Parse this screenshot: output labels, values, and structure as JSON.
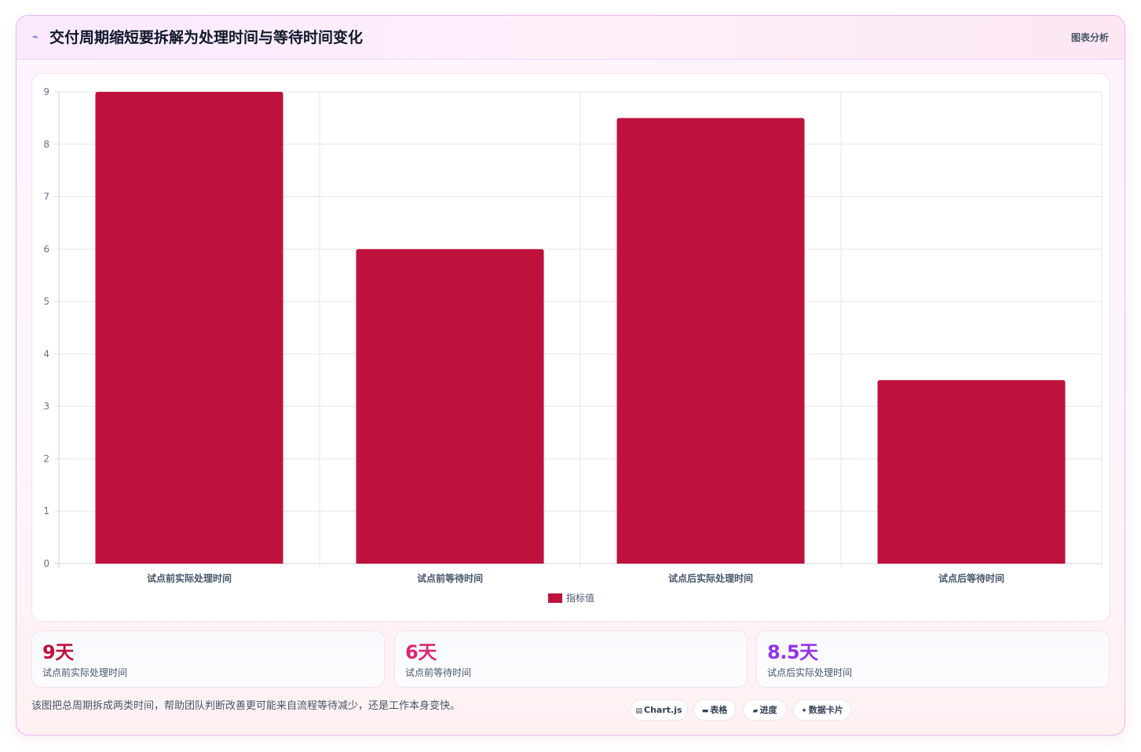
{
  "header": {
    "icon": "chart-line-icon",
    "title": "交付周期缩短要拆解为处理时间与等待时间变化",
    "right_label": "图表分析"
  },
  "chart_data": {
    "type": "bar",
    "categories": [
      "试点前实际处理时间",
      "试点前等待时间",
      "试点后实际处理时间",
      "试点后等待时间"
    ],
    "series": [
      {
        "name": "指标值",
        "values": [
          9,
          6,
          8.5,
          3.5
        ]
      }
    ],
    "ylim": [
      0,
      9
    ],
    "yticks": [
      "0",
      "1",
      "2",
      "3",
      "4",
      "5",
      "6",
      "7",
      "8",
      "9"
    ],
    "grid": true,
    "legend": "bottom",
    "bar_color": "#be123c"
  },
  "stats": [
    {
      "value": "9天",
      "label": "试点前实际处理时间",
      "color": "#be123c"
    },
    {
      "value": "6天",
      "label": "试点前等待时间",
      "color": "#db2777"
    },
    {
      "value": "8.5天",
      "label": "试点后实际处理时间",
      "color": "#9333ea"
    }
  ],
  "footer": {
    "note": "该图把总周期拆成两类时间，帮助团队判断改善更可能来自流程等待减少，还是工作本身变快。"
  },
  "chips": [
    {
      "icon": "chart-icon",
      "glyph": "▤",
      "label": "Chart.js"
    },
    {
      "icon": "table-icon",
      "glyph": "▬",
      "label": "表格"
    },
    {
      "icon": "progress-icon",
      "glyph": "▰",
      "label": "进度"
    },
    {
      "icon": "sparkle-icon",
      "glyph": "✦",
      "label": "数据卡片"
    }
  ]
}
